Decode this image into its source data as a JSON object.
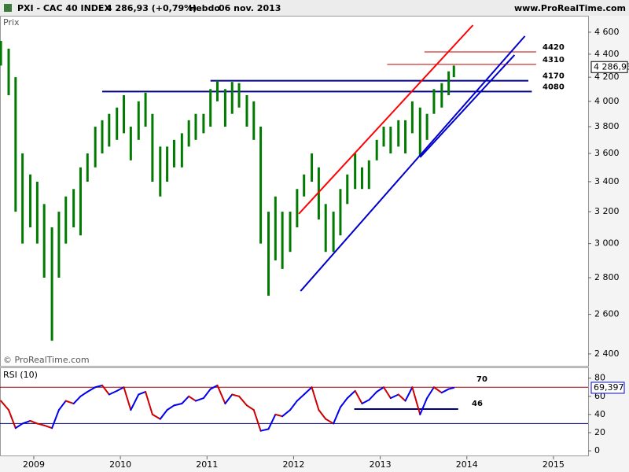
{
  "header": {
    "symbol": "PXI - CAC 40 INDEX",
    "quote": "4 286,93 (+0,79%)",
    "period": "Hebdo",
    "date": "06 nov. 2013",
    "site": "www.ProRealTime.com"
  },
  "chart_data": [
    {
      "type": "hilo",
      "label": "Prix",
      "watermark": "© ProRealTime.com",
      "log": true,
      "color": "#007a00",
      "x": [
        2008.62,
        2008.71,
        2008.79,
        2008.87,
        2008.96,
        2009.04,
        2009.12,
        2009.21,
        2009.29,
        2009.37,
        2009.46,
        2009.54,
        2009.62,
        2009.71,
        2009.79,
        2009.87,
        2009.96,
        2010.04,
        2010.12,
        2010.21,
        2010.29,
        2010.37,
        2010.46,
        2010.54,
        2010.62,
        2010.71,
        2010.79,
        2010.87,
        2010.96,
        2011.04,
        2011.12,
        2011.21,
        2011.29,
        2011.37,
        2011.46,
        2011.54,
        2011.62,
        2011.71,
        2011.79,
        2011.87,
        2011.96,
        2012.04,
        2012.12,
        2012.21,
        2012.29,
        2012.37,
        2012.46,
        2012.54,
        2012.62,
        2012.71,
        2012.79,
        2012.87,
        2012.96,
        2013.04,
        2013.12,
        2013.21,
        2013.29,
        2013.37,
        2013.46,
        2013.54,
        2013.62,
        2013.71,
        2013.79,
        2013.85
      ],
      "high": [
        4520,
        4450,
        4200,
        3600,
        3450,
        3400,
        3250,
        3100,
        3200,
        3300,
        3350,
        3500,
        3600,
        3800,
        3850,
        3900,
        3950,
        4050,
        3800,
        4000,
        4070,
        3900,
        3650,
        3650,
        3700,
        3750,
        3850,
        3900,
        3900,
        4100,
        4170,
        4100,
        4160,
        4150,
        4050,
        4000,
        3800,
        3200,
        3300,
        3200,
        3200,
        3350,
        3450,
        3600,
        3500,
        3250,
        3200,
        3350,
        3450,
        3600,
        3500,
        3550,
        3700,
        3800,
        3800,
        3850,
        3850,
        4000,
        3950,
        3900,
        4100,
        4150,
        4250,
        4300
      ],
      "low": [
        4300,
        4050,
        3200,
        3000,
        3100,
        3000,
        2800,
        2465,
        2800,
        3000,
        3100,
        3050,
        3400,
        3500,
        3600,
        3650,
        3700,
        3750,
        3550,
        3700,
        3800,
        3400,
        3300,
        3400,
        3500,
        3500,
        3650,
        3700,
        3750,
        3800,
        4000,
        3800,
        3900,
        3950,
        3800,
        3700,
        3000,
        2700,
        2900,
        2850,
        2950,
        3100,
        3300,
        3400,
        3150,
        2950,
        2950,
        3050,
        3250,
        3350,
        3350,
        3350,
        3550,
        3650,
        3600,
        3650,
        3600,
        3750,
        3580,
        3700,
        3900,
        3950,
        4050,
        4200
      ],
      "xlim": [
        2008.61,
        2015.4
      ],
      "ylim": [
        2343,
        4756
      ],
      "yticks": [
        {
          "value": 2400,
          "label": "2 400"
        },
        {
          "value": 2600,
          "label": "2 600"
        },
        {
          "value": 2800,
          "label": "2 800"
        },
        {
          "value": 3000,
          "label": "3 000"
        },
        {
          "value": 3200,
          "label": "3 200"
        },
        {
          "value": 3400,
          "label": "3 400"
        },
        {
          "value": 3600,
          "label": "3 600"
        },
        {
          "value": 3800,
          "label": "3 800"
        },
        {
          "value": 4000,
          "label": "4 000"
        },
        {
          "value": 4200,
          "label": "4 200"
        },
        {
          "value": 4400,
          "label": "4 400"
        },
        {
          "value": 4600,
          "label": "4 600"
        }
      ],
      "levels": [
        {
          "value": 4420,
          "from": 2013.51,
          "to": 2014.8,
          "color": "#c00000"
        },
        {
          "value": 4310,
          "from": 2013.08,
          "to": 2014.8,
          "color": "#c00000"
        },
        {
          "value": 4170,
          "from": 2011.04,
          "to": 2014.71,
          "color": "#000080"
        },
        {
          "value": 4080,
          "from": 2009.79,
          "to": 2014.75,
          "color": "#000080"
        }
      ],
      "trendlines": [
        {
          "from": [
            2012.06,
            3186
          ],
          "to": [
            2014.07,
            4666
          ],
          "color": "#ff0000"
        },
        {
          "from": [
            2012.08,
            2725
          ],
          "to": [
            2014.67,
            4564
          ],
          "color": "#0000cc"
        },
        {
          "from": [
            2013.46,
            3572
          ],
          "to": [
            2014.55,
            4393
          ],
          "color": "#0000cc"
        }
      ],
      "last": {
        "value": 4286.93,
        "label": "4 286,93"
      }
    },
    {
      "type": "line",
      "title": "RSI (10)",
      "up_color": "#0000ee",
      "down_color": "#cc0000",
      "x": [
        2008.62,
        2008.71,
        2008.79,
        2008.87,
        2008.96,
        2009.04,
        2009.12,
        2009.21,
        2009.29,
        2009.37,
        2009.46,
        2009.54,
        2009.62,
        2009.71,
        2009.79,
        2009.87,
        2009.96,
        2010.04,
        2010.12,
        2010.21,
        2010.29,
        2010.37,
        2010.46,
        2010.54,
        2010.62,
        2010.71,
        2010.79,
        2010.87,
        2010.96,
        2011.04,
        2011.12,
        2011.21,
        2011.29,
        2011.37,
        2011.46,
        2011.54,
        2011.62,
        2011.71,
        2011.79,
        2011.87,
        2011.96,
        2012.04,
        2012.12,
        2012.21,
        2012.29,
        2012.37,
        2012.46,
        2012.54,
        2012.62,
        2012.71,
        2012.79,
        2012.87,
        2012.96,
        2013.04,
        2013.12,
        2013.21,
        2013.29,
        2013.37,
        2013.46,
        2013.54,
        2013.62,
        2013.71,
        2013.79,
        2013.85
      ],
      "values": [
        55,
        45,
        25,
        30,
        33,
        30,
        28,
        25,
        45,
        55,
        52,
        60,
        65,
        70,
        72,
        62,
        66,
        70,
        45,
        62,
        65,
        40,
        35,
        45,
        50,
        52,
        60,
        55,
        58,
        68,
        72,
        52,
        62,
        60,
        50,
        45,
        22,
        24,
        40,
        38,
        45,
        55,
        62,
        70,
        45,
        35,
        30,
        48,
        58,
        66,
        52,
        56,
        65,
        70,
        58,
        62,
        55,
        70,
        40,
        58,
        70,
        64,
        68,
        69.4
      ],
      "xlim": [
        2008.61,
        2015.4
      ],
      "ylim": [
        -6,
        91
      ],
      "yticks": [
        0,
        20,
        40,
        60,
        80
      ],
      "xticks": [
        2009,
        2010,
        2011,
        2012,
        2013,
        2014,
        2015
      ],
      "levels": [
        {
          "value": 70,
          "color": "#a00000",
          "show_label": true
        },
        {
          "value": 30,
          "color": "#000080",
          "show_label": false
        }
      ],
      "support": {
        "value": 46,
        "from": 2012.7,
        "to": 2013.9,
        "color": "#000080"
      },
      "last": {
        "value": 69.397,
        "label": "69,397"
      }
    }
  ]
}
